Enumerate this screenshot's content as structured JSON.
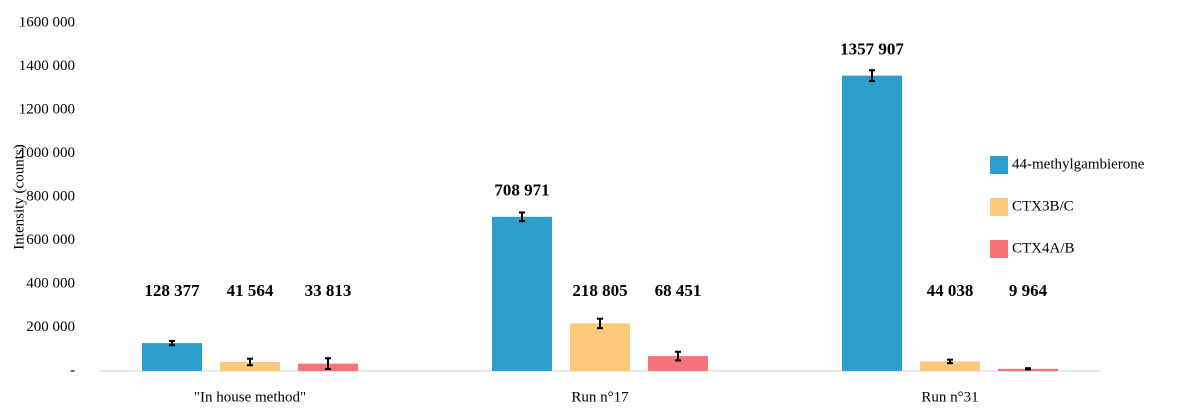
{
  "chart_data": {
    "type": "bar",
    "y_label": "Intensity (counts)",
    "categories": [
      "\"In house method\"",
      "Run n°17",
      "Run n°31"
    ],
    "series": [
      {
        "name": "44-methylgambierone",
        "color": "#2e9fcd",
        "values": [
          128377,
          708971,
          1357907
        ],
        "value_labels": [
          "128 377",
          "708 971",
          "1357 907"
        ],
        "errors": [
          10000,
          20000,
          25000
        ]
      },
      {
        "name": "CTX3B/C",
        "color": "#fec97a",
        "values": [
          41564,
          218805,
          44038
        ],
        "value_labels": [
          "41 564",
          "218 805",
          "44 038"
        ],
        "errors": [
          15000,
          22000,
          8000
        ]
      },
      {
        "name": "CTX4A/B",
        "color": "#f8727a",
        "values": [
          33813,
          68451,
          9964
        ],
        "value_labels": [
          "33 813",
          "68 451",
          "9 964"
        ],
        "errors": [
          25000,
          20000,
          3000
        ]
      }
    ],
    "ylim": [
      0,
      1600000
    ],
    "yticks": [
      {
        "value": 0,
        "label": "-"
      },
      {
        "value": 200000,
        "label": "200 000"
      },
      {
        "value": 400000,
        "label": "400 000"
      },
      {
        "value": 600000,
        "label": "600 000"
      },
      {
        "value": 800000,
        "label": "800 000"
      },
      {
        "value": 1000000,
        "label": "1000 000"
      },
      {
        "value": 1200000,
        "label": "1200 000"
      },
      {
        "value": 1400000,
        "label": "1400 000"
      },
      {
        "value": 1600000,
        "label": "1600 000"
      }
    ],
    "grid": false,
    "legend": "right"
  }
}
